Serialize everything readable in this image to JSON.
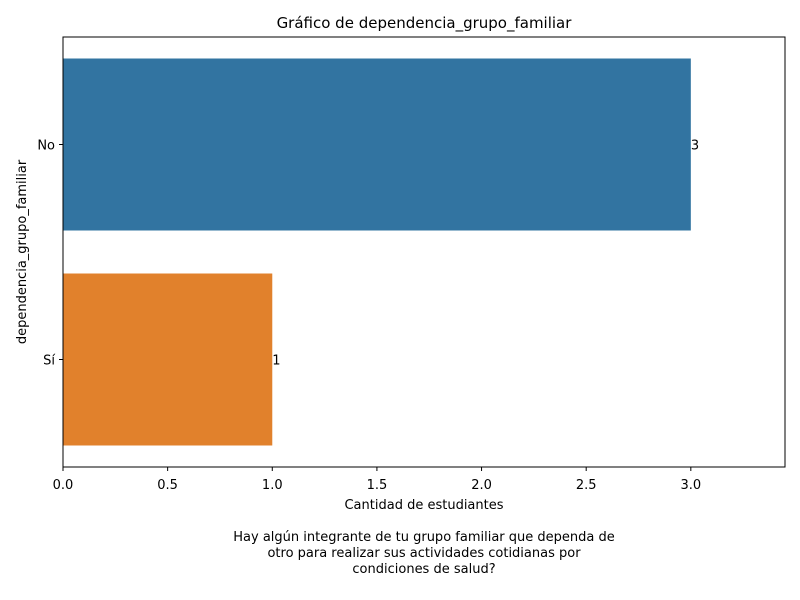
{
  "chart_data": {
    "type": "bar",
    "orientation": "horizontal",
    "title": "Gráfico de dependencia_grupo_familiar",
    "xlabel": "Cantidad de estudiantes",
    "ylabel": "dependencia_grupo_familiar",
    "categories": [
      "No",
      "Sí"
    ],
    "values": [
      3,
      1
    ],
    "data_labels": [
      "3",
      "1"
    ],
    "colors": [
      "#3274a1",
      "#e1812c"
    ],
    "xlim": [
      0,
      3.45
    ],
    "xticks": [
      0.0,
      0.5,
      1.0,
      1.5,
      2.0,
      2.5,
      3.0
    ],
    "xtick_labels": [
      "0.0",
      "0.5",
      "1.0",
      "1.5",
      "2.0",
      "2.5",
      "3.0"
    ],
    "grid": false,
    "legend": "none"
  },
  "caption": {
    "lines": [
      "Hay algún integrante de tu grupo familiar que dependa de",
      "otro para realizar sus actividades cotidianas por",
      "condiciones de salud?"
    ]
  }
}
